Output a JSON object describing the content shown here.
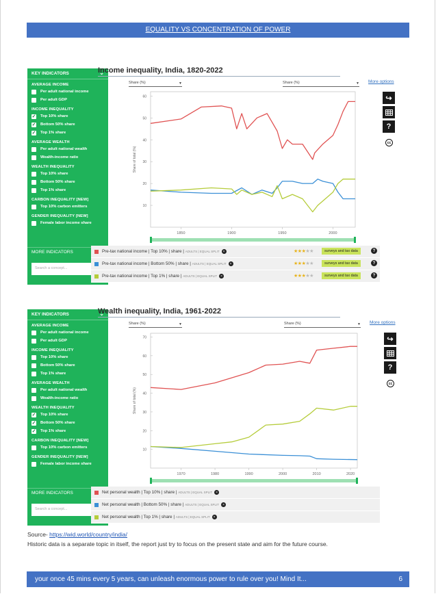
{
  "page": {
    "banner_title": "EQUALITY VS CONCENTRATION OF POWER",
    "source_label": "Source- ",
    "source_link": "https://wid.world/country/india/",
    "note": "Historic data is a separate topic in itself, the report just try to focus on the present state and aim for the future course.",
    "footer_text": "your once 45 mins every 5 years, can unleash enormous power to rule over you! Mind It...",
    "page_number": "6"
  },
  "sidebar": {
    "header": "KEY INDICATORS",
    "more_indicators": "MORE INDICATORS",
    "search_placeholder": "Search a concept...",
    "sections": [
      {
        "title": "AVERAGE INCOME",
        "items": [
          "Per adult national income",
          "Per adult GDP"
        ]
      },
      {
        "title": "INCOME INEQUALITY",
        "items": [
          "Top 10% share",
          "Bottom 50% share",
          "Top 1% share"
        ]
      },
      {
        "title": "AVERAGE WEALTH",
        "items": [
          "Per adult national wealth",
          "Wealth-income ratio"
        ]
      },
      {
        "title": "WEALTH INEQUALITY",
        "items": [
          "Top 10% share",
          "Bottom 50% share",
          "Top 1% share"
        ]
      },
      {
        "title": "CARBON INEQUALITY [NEW]",
        "items": [
          "Top 10% carbon emitters"
        ]
      },
      {
        "title": "GENDER INEQUALITY [NEW]",
        "items": [
          "Female labor income share"
        ]
      }
    ]
  },
  "income_panel": {
    "checked": [
      "Top 10% share",
      "Bottom 50% share",
      "Top 1% share"
    ],
    "legend": [
      {
        "label": "Pre-tax national income",
        "detail": " | Top 10% | share | ",
        "small": "ADULTS | EQUAL SPLIT",
        "color": "#e05252",
        "tag": "surveys and tax data",
        "stars": 3
      },
      {
        "label": "Pre-tax national income",
        "detail": " | Bottom 50% | share | ",
        "small": "ADULTS | EQUAL SPLIT",
        "color": "#3a8fd6",
        "tag": "surveys and tax data",
        "stars": 3
      },
      {
        "label": "Pre-tax national income",
        "detail": " | Top 1% | share | ",
        "small": "ADULTS | EQUAL SPLIT",
        "color": "#b5cc3a",
        "tag": "surveys and tax data",
        "stars": 3
      }
    ]
  },
  "wealth_panel": {
    "checked": [
      "Top 10% share",
      "Bottom 50% share",
      "Top 1% share"
    ],
    "legend": [
      {
        "label": "Net personal wealth",
        "detail": " | Top 10% | share | ",
        "small": "ADULTS | EQUAL SPLIT",
        "color": "#e05252"
      },
      {
        "label": "Net personal wealth",
        "detail": " | Bottom 50% | share | ",
        "small": "ADULTS | EQUAL SPLIT",
        "color": "#3a8fd6"
      },
      {
        "label": "Net personal wealth",
        "detail": " | Top 1% | share | ",
        "small": "ADULTS | EQUAL SPLIT",
        "color": "#b5cc3a"
      }
    ]
  },
  "controls": {
    "dropdown_label": "Share (%)",
    "more_options": "More options",
    "cc_label": "cc"
  },
  "chart_data": [
    {
      "type": "line",
      "title": "Income inequality, India, 1820-2022",
      "ylabel": "Share of total (%)",
      "xlabel": "",
      "xlim": [
        1820,
        2022
      ],
      "ylim": [
        0,
        62
      ],
      "xticks": [
        1850,
        1900,
        1950,
        2000
      ],
      "yticks": [
        10,
        20,
        30,
        40,
        50,
        60
      ],
      "series": [
        {
          "name": "Top 10% share",
          "color": "#e05252",
          "x": [
            1820,
            1850,
            1870,
            1890,
            1900,
            1905,
            1910,
            1915,
            1925,
            1935,
            1940,
            1945,
            1950,
            1955,
            1960,
            1970,
            1980,
            1982,
            1990,
            2000,
            2005,
            2010,
            2015,
            2022
          ],
          "y": [
            47.5,
            49.5,
            55,
            55.5,
            54.5,
            45,
            52,
            45,
            50,
            52,
            48,
            44,
            36,
            40,
            38,
            38,
            31,
            34,
            38,
            42,
            47,
            53,
            57.5,
            57.5
          ]
        },
        {
          "name": "Bottom 50% share",
          "color": "#3a8fd6",
          "x": [
            1820,
            1850,
            1880,
            1900,
            1910,
            1920,
            1930,
            1940,
            1945,
            1950,
            1960,
            1970,
            1980,
            1985,
            1990,
            2000,
            2005,
            2010,
            2022
          ],
          "y": [
            17,
            16,
            15.5,
            15.5,
            18,
            15,
            17,
            15.5,
            18,
            21,
            21,
            20,
            20,
            22,
            21,
            20,
            16,
            13,
            13
          ]
        },
        {
          "name": "Top 1% share",
          "color": "#b5cc3a",
          "x": [
            1820,
            1850,
            1880,
            1900,
            1905,
            1910,
            1920,
            1930,
            1940,
            1945,
            1950,
            1960,
            1970,
            1975,
            1980,
            1985,
            1990,
            2000,
            2005,
            2010,
            2022
          ],
          "y": [
            16.5,
            17,
            18,
            17.5,
            15,
            17,
            15,
            16,
            14,
            19,
            13,
            15,
            13,
            10,
            7,
            10,
            12,
            16,
            20,
            22,
            22
          ]
        }
      ]
    },
    {
      "type": "line",
      "title": "Wealth inequality, India, 1961-2022",
      "ylabel": "Share of total (%)",
      "xlabel": "",
      "xlim": [
        1961,
        2022
      ],
      "ylim": [
        0,
        72
      ],
      "xticks": [
        1970,
        1980,
        1990,
        2000,
        2010,
        2020
      ],
      "yticks": [
        10,
        20,
        30,
        40,
        50,
        60,
        70
      ],
      "series": [
        {
          "name": "Top 10% share",
          "color": "#e05252",
          "x": [
            1961,
            1970,
            1980,
            1990,
            1995,
            2000,
            2005,
            2008,
            2010,
            2015,
            2020,
            2022
          ],
          "y": [
            43,
            42,
            45.5,
            51,
            55,
            55.5,
            57,
            56,
            63,
            64,
            65,
            65
          ]
        },
        {
          "name": "Bottom 50% share",
          "color": "#3a8fd6",
          "x": [
            1961,
            1970,
            1980,
            1990,
            2000,
            2005,
            2008,
            2010,
            2015,
            2022
          ],
          "y": [
            11.5,
            10.5,
            9,
            7.5,
            6.8,
            6.6,
            6.4,
            5,
            4.7,
            4.5
          ]
        },
        {
          "name": "Top 1% share",
          "color": "#b5cc3a",
          "x": [
            1961,
            1970,
            1980,
            1985,
            1990,
            1995,
            2000,
            2005,
            2008,
            2010,
            2015,
            2020,
            2022
          ],
          "y": [
            11.5,
            11,
            13,
            14,
            16.5,
            23,
            23.5,
            25,
            29,
            32,
            31,
            33,
            33
          ]
        }
      ]
    }
  ]
}
